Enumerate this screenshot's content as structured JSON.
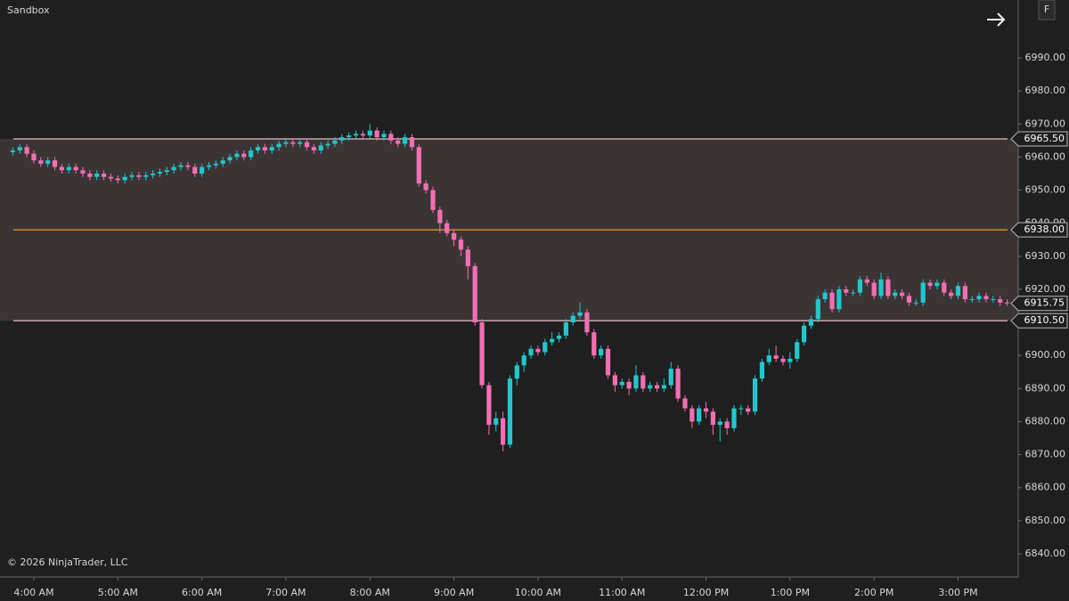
{
  "ui": {
    "workspace": "Sandbox",
    "copyright": "© 2026 NinjaTrader, LLC",
    "tab_label": "F"
  },
  "chart_data": {
    "type": "candlestick",
    "categories": [
      null,
      null,
      null,
      "4:00 AM",
      null,
      null,
      null,
      null,
      null,
      null,
      null,
      null,
      null,
      null,
      null,
      "5:00 AM",
      null,
      null,
      null,
      null,
      null,
      null,
      null,
      null,
      null,
      null,
      null,
      "6:00 AM",
      null,
      null,
      null,
      null,
      null,
      null,
      null,
      null,
      null,
      null,
      null,
      "7:00 AM",
      null,
      null,
      null,
      null,
      null,
      null,
      null,
      null,
      null,
      null,
      null,
      "8:00 AM",
      null,
      null,
      null,
      null,
      null,
      null,
      null,
      null,
      null,
      null,
      null,
      "9:00 AM",
      null,
      null,
      null,
      null,
      null,
      null,
      null,
      null,
      null,
      null,
      null,
      "10:00 AM",
      null,
      null,
      null,
      null,
      null,
      null,
      null,
      null,
      null,
      null,
      null,
      "11:00 AM",
      null,
      null,
      null,
      null,
      null,
      null,
      null,
      null,
      null,
      null,
      null,
      "12:00 PM",
      null,
      null,
      null,
      null,
      null,
      null,
      null,
      null,
      null,
      null,
      null,
      "1:00 PM",
      null,
      null,
      null,
      null,
      null,
      null,
      null,
      null,
      null,
      null,
      null,
      "2:00 PM",
      null,
      null,
      null,
      null,
      null,
      null,
      null,
      null,
      null,
      null,
      null,
      "3:00 PM",
      null,
      null,
      null,
      null,
      null,
      null,
      null
    ],
    "open": [
      6961.5,
      6962,
      6963,
      6961,
      6959,
      6958,
      6959,
      6957,
      6956,
      6957,
      6956,
      6955,
      6954,
      6955,
      6954,
      6953.5,
      6953,
      6954,
      6954.5,
      6954,
      6954.5,
      6955,
      6955.5,
      6956,
      6957,
      6957.5,
      6957,
      6955,
      6957,
      6957.5,
      6958,
      6959,
      6960,
      6961,
      6960,
      6962,
      6963,
      6962,
      6963,
      6964,
      6964.5,
      6964,
      6964.5,
      6963,
      6962,
      6963.5,
      6964,
      6965,
      6966,
      6966.5,
      6967,
      6966.5,
      6968,
      6966,
      6967,
      6965,
      6964,
      6966,
      6963,
      6952,
      6950,
      6944,
      6940,
      6937,
      6935,
      6932,
      6927,
      6910,
      6891,
      6879,
      6881,
      6873,
      6893,
      6897,
      6900,
      6902,
      6901,
      6904,
      6905,
      6906,
      6910,
      6912,
      6913,
      6907,
      6900,
      6902,
      6894,
      6891,
      6892,
      6890,
      6894,
      6890,
      6891,
      6890,
      6891,
      6896,
      6887,
      6884,
      6880,
      6884,
      6883,
      6879,
      6880,
      6878,
      6884,
      6884,
      6883,
      6893,
      6898,
      6900,
      6899,
      6898,
      6899,
      6904,
      6909,
      6911,
      6917,
      6919,
      6914,
      6920,
      6919,
      6919,
      6923,
      6922,
      6918,
      6923,
      6918,
      6919,
      6918,
      6916,
      6916,
      6922,
      6921,
      6922,
      6919,
      6918,
      6921,
      6917,
      6917,
      6918,
      6917,
      6917,
      6916
    ],
    "high": [
      6963,
      6964,
      6964,
      6962,
      6960,
      6960,
      6960,
      6958,
      6958,
      6958,
      6957,
      6956,
      6956,
      6956,
      6955,
      6954.5,
      6955,
      6955.5,
      6955.5,
      6955.5,
      6956,
      6956.5,
      6957,
      6958,
      6958.5,
      6958.5,
      6958,
      6958,
      6958.5,
      6959,
      6960,
      6961,
      6962,
      6962,
      6963,
      6964,
      6964,
      6964,
      6965,
      6965.5,
      6965.5,
      6965.5,
      6965.5,
      6964,
      6964.5,
      6965,
      6966,
      6967,
      6967.5,
      6968,
      6968,
      6970,
      6969,
      6968,
      6968,
      6966,
      6967,
      6967,
      6964,
      6953,
      6951,
      6945,
      6941,
      6938,
      6936,
      6933,
      6928,
      6911,
      6892,
      6883,
      6883,
      6894,
      6898,
      6901,
      6903,
      6903,
      6905,
      6907,
      6907,
      6911,
      6913,
      6916,
      6914,
      6908,
      6903,
      6903,
      6895,
      6893,
      6893,
      6897,
      6895,
      6892,
      6892,
      6893,
      6898,
      6897,
      6888,
      6885,
      6885,
      6886,
      6884,
      6881,
      6881,
      6885,
      6885,
      6885,
      6894,
      6899,
      6902,
      6903,
      6900,
      6901,
      6905,
      6910,
      6912,
      6918,
      6920,
      6920,
      6921,
      6921,
      6920,
      6924,
      6924,
      6923,
      6925,
      6924,
      6920,
      6920,
      6919,
      6917,
      6923,
      6923,
      6923,
      6923,
      6920,
      6922,
      6922,
      6918,
      6919,
      6919,
      6918,
      6918,
      6917
    ],
    "low": [
      6960.5,
      6961,
      6960,
      6958,
      6957,
      6957,
      6956,
      6955,
      6955,
      6955,
      6954,
      6953,
      6953,
      6953,
      6952.5,
      6952,
      6952,
      6953,
      6953,
      6953,
      6953.5,
      6954,
      6954.5,
      6955,
      6956,
      6956,
      6954,
      6954,
      6956,
      6956.5,
      6957,
      6958,
      6959,
      6959,
      6959,
      6961,
      6961,
      6961,
      6962,
      6963,
      6963,
      6963,
      6962,
      6961,
      6961,
      6962.5,
      6963,
      6964,
      6965,
      6965.5,
      6965.5,
      6965.5,
      6965,
      6965,
      6964,
      6963,
      6963,
      6962,
      6951,
      6949,
      6943,
      6937,
      6936,
      6933,
      6930,
      6923,
      6909,
      6890,
      6876,
      6877,
      6871,
      6872,
      6891,
      6895,
      6899,
      6900,
      6900,
      6903,
      6904,
      6905,
      6909,
      6911,
      6906,
      6899,
      6899,
      6893,
      6889,
      6890,
      6888,
      6889,
      6889,
      6889,
      6889,
      6889,
      6890,
      6886,
      6883,
      6878,
      6879,
      6881,
      6876,
      6874,
      6876,
      6877,
      6882,
      6882,
      6882,
      6892,
      6897,
      6898,
      6897,
      6896,
      6898,
      6903,
      6908,
      6910,
      6916,
      6913,
      6913,
      6918,
      6918,
      6918,
      6921,
      6917,
      6917,
      6917,
      6917,
      6917,
      6915,
      6915,
      6915,
      6920,
      6920,
      6918,
      6917,
      6917,
      6916,
      6916,
      6916,
      6916,
      6916,
      6915,
      6915
    ],
    "close": [
      6962,
      6963,
      6961,
      6959,
      6958,
      6959,
      6957,
      6956,
      6957,
      6956,
      6955,
      6954,
      6955,
      6954,
      6953.5,
      6953,
      6954,
      6954.5,
      6954,
      6954.5,
      6955,
      6955.5,
      6956,
      6957,
      6957.5,
      6957,
      6955,
      6957,
      6957.5,
      6958,
      6959,
      6960,
      6961,
      6960,
      6962,
      6963,
      6962,
      6963,
      6964,
      6964.5,
      6964,
      6964.5,
      6963,
      6962,
      6963.5,
      6964,
      6965,
      6966,
      6966.5,
      6967,
      6966.5,
      6968,
      6966,
      6967,
      6965,
      6964,
      6966,
      6963,
      6952,
      6950,
      6944,
      6940,
      6937,
      6935,
      6932,
      6927,
      6910,
      6891,
      6879,
      6881,
      6873,
      6893,
      6897,
      6900,
      6902,
      6901,
      6904,
      6905,
      6906,
      6910,
      6912,
      6913,
      6907,
      6900,
      6902,
      6894,
      6891,
      6892,
      6890,
      6894,
      6890,
      6891,
      6890,
      6891,
      6896,
      6887,
      6884,
      6880,
      6884,
      6883,
      6879,
      6880,
      6878,
      6884,
      6884,
      6883,
      6893,
      6898,
      6900,
      6899,
      6898,
      6899,
      6904,
      6909,
      6911,
      6917,
      6919,
      6914,
      6920,
      6919,
      6919,
      6923,
      6922,
      6918,
      6923,
      6918,
      6919,
      6918,
      6916,
      6916,
      6922,
      6921,
      6922,
      6919,
      6918,
      6921,
      6917,
      6917,
      6918,
      6917,
      6917,
      6916,
      6915.75
    ],
    "up_color": "#22c7cc",
    "down_color": "#f36fb2",
    "ylim": [
      6833,
      7007.5
    ],
    "yticks": [
      {
        "value": 6840,
        "label": "6840.00"
      },
      {
        "value": 6850,
        "label": "6850.00"
      },
      {
        "value": 6860,
        "label": "6860.00"
      },
      {
        "value": 6870,
        "label": "6870.00"
      },
      {
        "value": 6880,
        "label": "6880.00"
      },
      {
        "value": 6890,
        "label": "6890.00"
      },
      {
        "value": 6900,
        "label": "6900.00"
      },
      {
        "value": 6910,
        "label": "6910.00"
      },
      {
        "value": 6920,
        "label": "6920.00"
      },
      {
        "value": 6930,
        "label": "6930.00"
      },
      {
        "value": 6940,
        "label": "6940.00"
      },
      {
        "value": 6950,
        "label": "6950.00"
      },
      {
        "value": 6960,
        "label": "6960.00"
      },
      {
        "value": 6970,
        "label": "6970.00"
      },
      {
        "value": 6980,
        "label": "6980.00"
      },
      {
        "value": 6990,
        "label": "6990.00"
      }
    ],
    "grid": false,
    "levels": [
      {
        "value": 6965.5,
        "label": "6965.50",
        "color": "#c9a3ab"
      },
      {
        "value": 6938,
        "label": "6938.00",
        "color": "#d08a2e"
      },
      {
        "value": 6910.5,
        "label": "6910.50",
        "color": "#c9a3ab"
      }
    ],
    "zone_fill": "#3b3435"
  }
}
